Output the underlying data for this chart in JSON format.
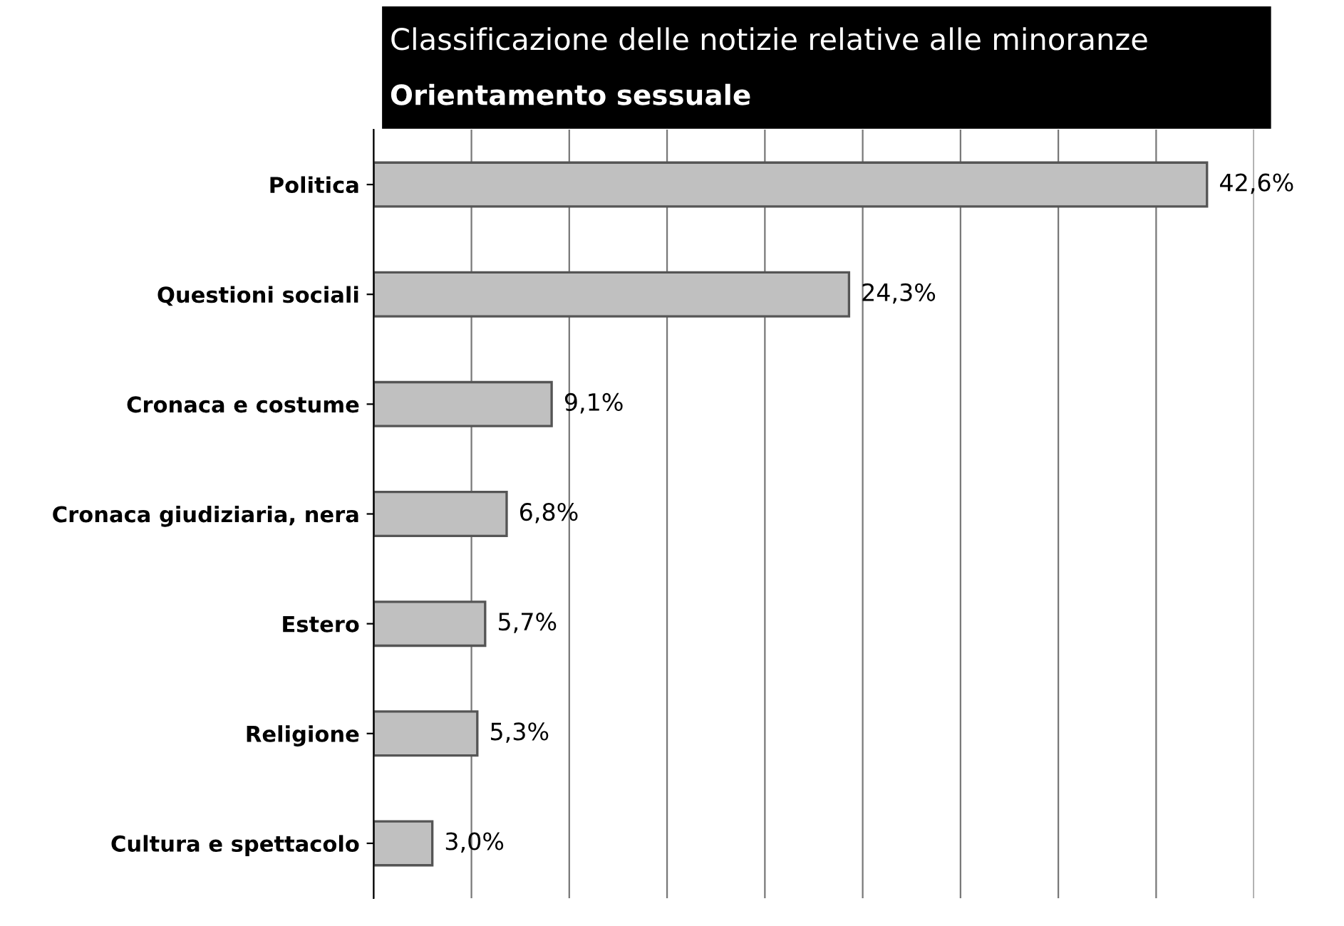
{
  "chart_data": {
    "type": "bar",
    "orientation": "horizontal",
    "title": "Classificazione delle notizie relative alle minoranze",
    "subtitle": "Orientamento sessuale",
    "categories": [
      "Politica",
      "Questioni sociali",
      "Cronaca e costume",
      "Cronaca giudiziaria, nera",
      "Estero",
      "Religione",
      "Cultura e spettacolo"
    ],
    "values": [
      42.6,
      24.3,
      9.1,
      6.8,
      5.7,
      5.3,
      3.0
    ],
    "value_labels": [
      "42,6%",
      "24,3%",
      "9,1%",
      "6,8%",
      "5,7%",
      "5,3%",
      "3,0%"
    ],
    "color": "#c0c0c0",
    "xlim": [
      0,
      45
    ],
    "xticks": [
      {
        "value": 0,
        "label": null
      },
      {
        "value": 5,
        "label": null
      },
      {
        "value": 10,
        "label": null
      },
      {
        "value": 15,
        "label": null
      },
      {
        "value": 20,
        "label": null
      },
      {
        "value": 25,
        "label": null
      },
      {
        "value": 30,
        "label": null
      },
      {
        "value": 35,
        "label": null
      },
      {
        "value": 40,
        "label": null
      },
      {
        "value": 45,
        "label": null
      }
    ],
    "grid": "x",
    "tick_labels": "y",
    "legend": false
  }
}
